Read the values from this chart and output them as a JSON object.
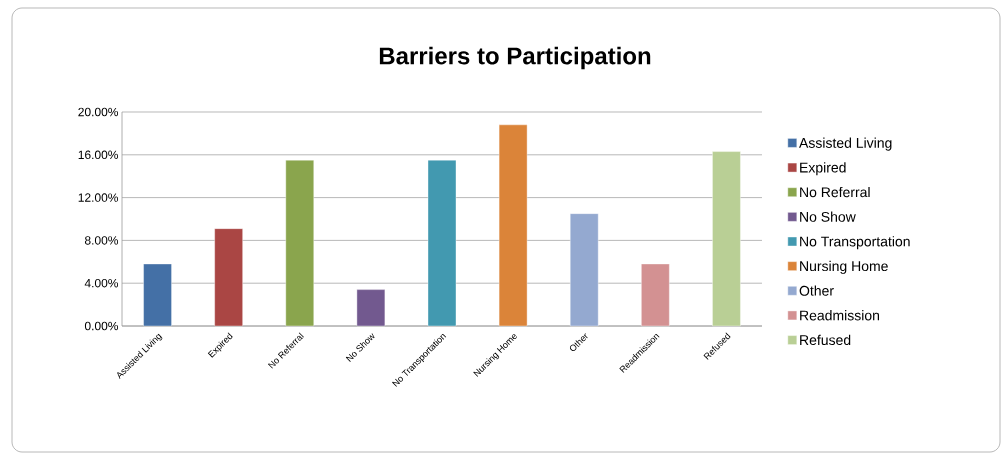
{
  "chart_data": {
    "type": "bar",
    "title": "Barriers to Participation",
    "categories": [
      "Assisted Living",
      "Expired",
      "No Referral",
      "No Show",
      "No Transportation",
      "Nursing Home",
      "Other",
      "Readmission",
      "Refused"
    ],
    "series": [
      {
        "name": "Assisted Living",
        "color": "#4470a6",
        "values": [
          5.8,
          null,
          null,
          null,
          null,
          null,
          null,
          null,
          null
        ]
      },
      {
        "name": "Expired",
        "color": "#aa4644",
        "values": [
          null,
          9.1,
          null,
          null,
          null,
          null,
          null,
          null,
          null
        ]
      },
      {
        "name": "No Referral",
        "color": "#8aa54d",
        "values": [
          null,
          null,
          15.5,
          null,
          null,
          null,
          null,
          null,
          null
        ]
      },
      {
        "name": "No Show",
        "color": "#72598f",
        "values": [
          null,
          null,
          null,
          3.4,
          null,
          null,
          null,
          null,
          null
        ]
      },
      {
        "name": "No Transportation",
        "color": "#4299b0",
        "values": [
          null,
          null,
          null,
          null,
          15.5,
          null,
          null,
          null,
          null
        ]
      },
      {
        "name": "Nursing Home",
        "color": "#db8439",
        "values": [
          null,
          null,
          null,
          null,
          null,
          18.8,
          null,
          null,
          null
        ]
      },
      {
        "name": "Other",
        "color": "#94a9d0",
        "values": [
          null,
          null,
          null,
          null,
          null,
          null,
          10.5,
          null,
          null
        ]
      },
      {
        "name": "Readmission",
        "color": "#d39192",
        "values": [
          null,
          null,
          null,
          null,
          null,
          null,
          null,
          5.8,
          null
        ]
      },
      {
        "name": "Refused",
        "color": "#b9cf95",
        "values": [
          null,
          null,
          null,
          null,
          null,
          null,
          null,
          null,
          16.3
        ]
      }
    ],
    "ylim": [
      0,
      20
    ],
    "yticks": [
      {
        "value": 0,
        "label": "0.00%"
      },
      {
        "value": 4,
        "label": "4.00%"
      },
      {
        "value": 8,
        "label": "8.00%"
      },
      {
        "value": 12,
        "label": "12.00%"
      },
      {
        "value": 16,
        "label": "16.00%"
      },
      {
        "value": 20,
        "label": "20.00%"
      }
    ],
    "grid": "y",
    "legend": "right"
  }
}
